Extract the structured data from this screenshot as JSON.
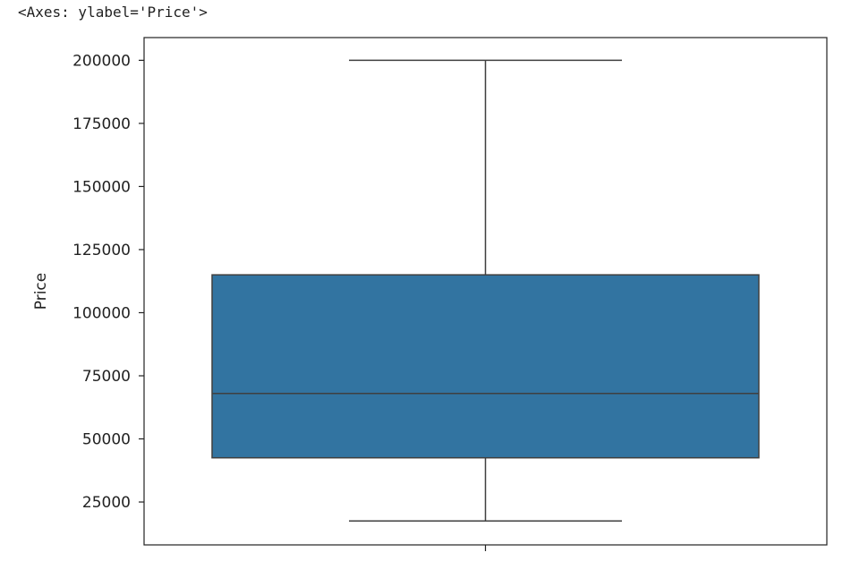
{
  "output": {
    "axes_repr": "<Axes: ylabel='Price'>"
  },
  "colors": {
    "box_fill": "#3274a1",
    "line": "#3f3f3f",
    "frame": "#222222"
  },
  "chart_data": {
    "type": "box",
    "title": "",
    "xlabel": "",
    "ylabel": "Price",
    "ylim": [
      8000,
      209000
    ],
    "yticks": [
      25000,
      50000,
      75000,
      100000,
      125000,
      150000,
      175000,
      200000
    ],
    "ytick_labels": [
      "25000",
      "50000",
      "75000",
      "100000",
      "125000",
      "150000",
      "175000",
      "200000"
    ],
    "box": {
      "whisker_low": 17500,
      "q1": 42500,
      "median": 68000,
      "q3": 115000,
      "whisker_high": 200000
    },
    "grid": false,
    "legend": "none"
  }
}
